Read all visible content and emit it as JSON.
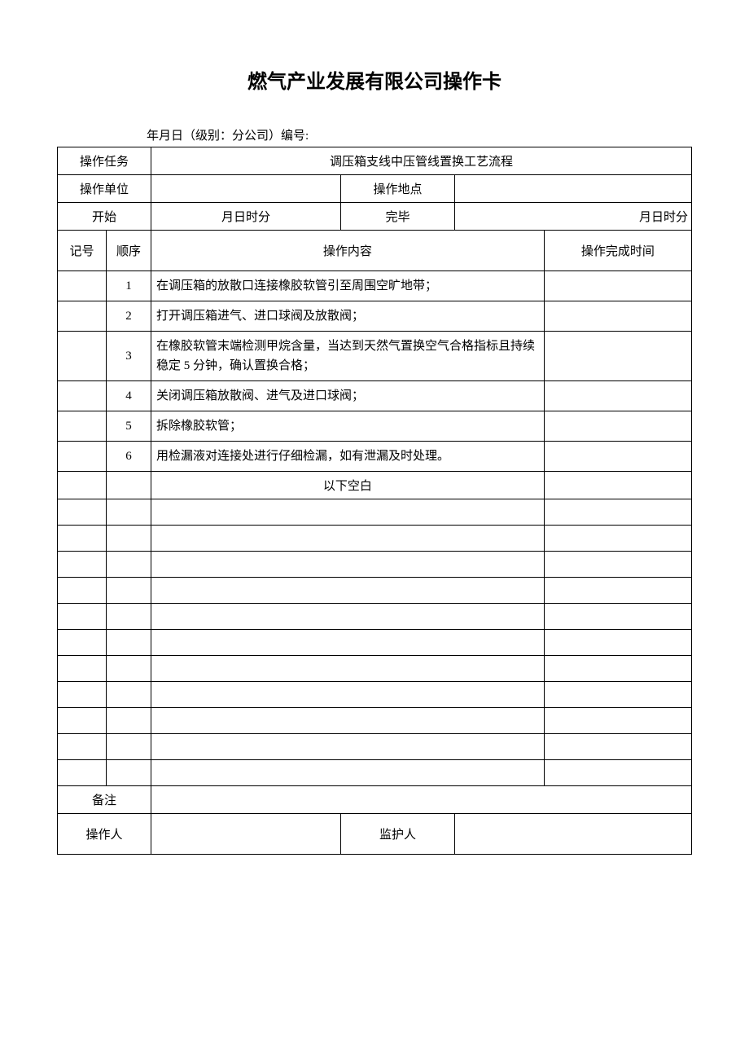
{
  "title": "燃气产业发展有限公司操作卡",
  "subtitle": "年月日（级别：分公司）编号:",
  "labels": {
    "task": "操作任务",
    "task_value": "调压箱支线中压管线置换工艺流程",
    "unit": "操作单位",
    "location": "操作地点",
    "start": "开始",
    "start_value": "月日时分",
    "end": "完毕",
    "end_value": "月日时分",
    "mark": "记号",
    "seq": "顺序",
    "content": "操作内容",
    "complete_time": "操作完成时间",
    "blank_below": "以下空白",
    "remark": "备注",
    "operator": "操作人",
    "supervisor": "监护人"
  },
  "steps": [
    {
      "seq": "1",
      "content": "在调压箱的放散口连接橡胶软管引至周围空旷地带；"
    },
    {
      "seq": "2",
      "content": "打开调压箱进气、进口球阀及放散阀；"
    },
    {
      "seq": "3",
      "content": "在橡胶软管末端检测甲烷含量，当达到天然气置换空气合格指标且持续稳定 5 分钟，确认置换合格；"
    },
    {
      "seq": "4",
      "content": "关闭调压箱放散阀、进气及进口球阀；"
    },
    {
      "seq": "5",
      "content": "拆除橡胶软管；"
    },
    {
      "seq": "6",
      "content": "用检漏液对连接处进行仔细检漏，如有泄漏及时处理。"
    }
  ],
  "empty_rows": 11
}
